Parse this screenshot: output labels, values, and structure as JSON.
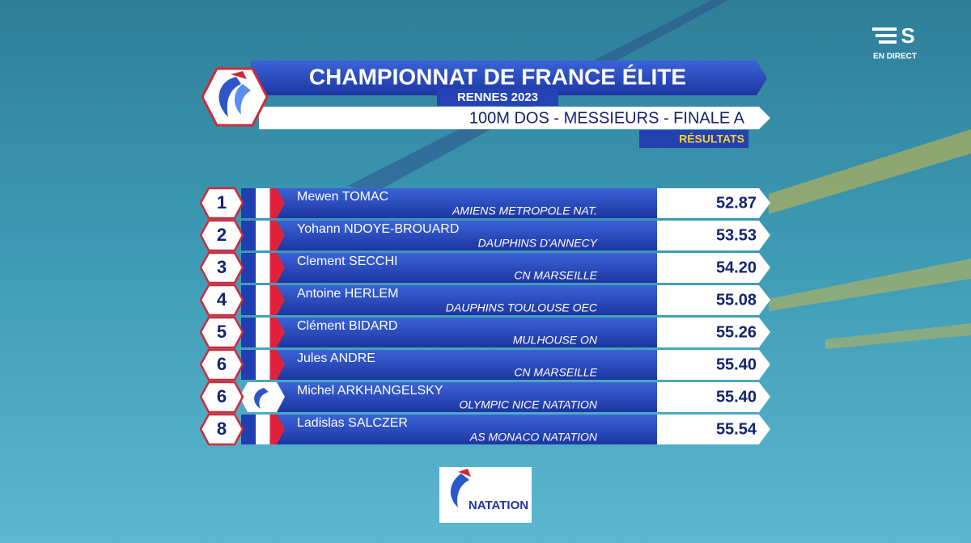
{
  "broadcast": {
    "status": "EN DIRECT"
  },
  "header": {
    "title": "CHAMPIONNAT DE FRANCE ÉLITE",
    "subtitle": "RENNES 2023",
    "event": "100M DOS - MESSIEURS - FINALE A",
    "label": "RÉSULTATS"
  },
  "table": {
    "rows": [
      [
        "1",
        "Mewen TOMAC",
        "AMIENS METROPOLE NAT.",
        "52.87"
      ],
      [
        "2",
        "Yohann NDOYE-BROUARD",
        "DAUPHINS D'ANNECY",
        "53.53"
      ],
      [
        "3",
        "Clement SECCHI",
        "CN MARSEILLE",
        "54.20"
      ],
      [
        "4",
        "Antoine HERLEM",
        "DAUPHINS TOULOUSE OEC",
        "55.08"
      ],
      [
        "5",
        "Clément BIDARD",
        "MULHOUSE ON",
        "55.26"
      ],
      [
        "6",
        "Jules ANDRE",
        "CN MARSEILLE",
        "55.40"
      ],
      [
        "6",
        "Michel ARKHANGELSKY",
        "OLYMPIC NICE NATATION",
        "55.40"
      ],
      [
        "8",
        "Ladislas SALCZER",
        "AS MONACO NATATION",
        "55.54"
      ]
    ]
  },
  "footer": {
    "logo_text": "NATATION"
  }
}
